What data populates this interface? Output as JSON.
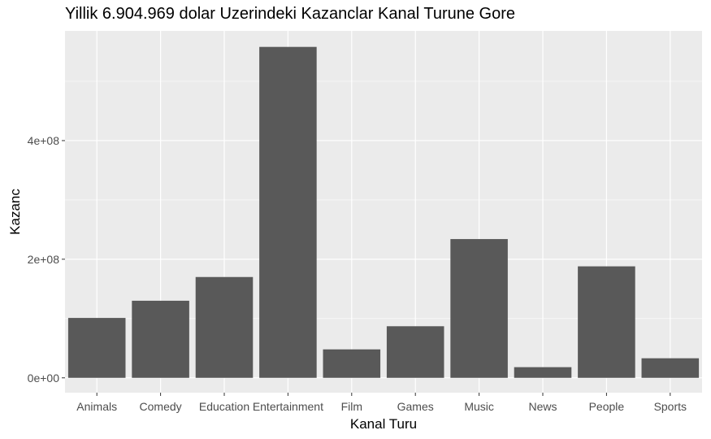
{
  "chart_data": {
    "type": "bar",
    "title": "Yillik 6.904.969 dolar Uzerindeki Kazanclar Kanal Turune Gore",
    "xlabel": "Kanal Turu",
    "ylabel": "Kazanc",
    "categories": [
      "Animals",
      "Comedy",
      "Education",
      "Entertainment",
      "Film",
      "Games",
      "Music",
      "News",
      "People",
      "Sports"
    ],
    "values": [
      101000000,
      130000000,
      170000000,
      558000000,
      48000000,
      87000000,
      234000000,
      18000000,
      188000000,
      33000000
    ],
    "ylim": [
      -25000000,
      585000000
    ],
    "yticks": [
      0,
      200000000,
      400000000
    ],
    "ytick_labels": [
      "0e+00",
      "2e+08",
      "4e+08"
    ],
    "grid": true,
    "colors": {
      "bar": "#595959",
      "panel": "#ebebeb",
      "grid": "#ffffff"
    }
  }
}
